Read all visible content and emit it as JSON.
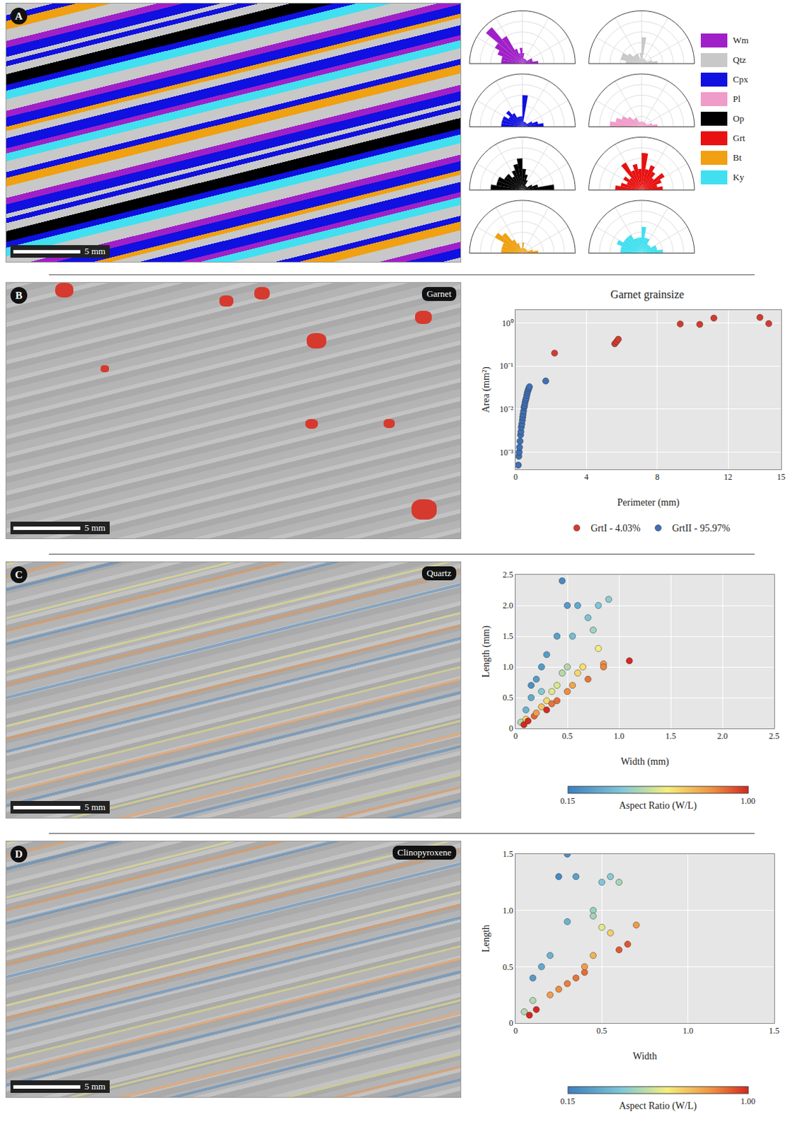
{
  "panels": [
    {
      "letter": "A",
      "scale_bar": "5 mm"
    },
    {
      "letter": "B",
      "map_label": "Garnet",
      "scale_bar": "5 mm"
    },
    {
      "letter": "C",
      "map_label": "Quartz",
      "scale_bar": "5 mm"
    },
    {
      "letter": "D",
      "map_label": "Clinopyroxene",
      "scale_bar": "5 mm"
    }
  ],
  "chart_data": [
    {
      "type": "rose",
      "panel": "A",
      "name": "Wm",
      "color": "#a020c8",
      "x": [
        5,
        15,
        25,
        35,
        45,
        55,
        65,
        75,
        85,
        95,
        105,
        115,
        125,
        135,
        145,
        155,
        165,
        175
      ],
      "values": [
        3,
        2,
        2,
        1,
        1,
        1,
        1,
        1,
        2,
        3,
        2,
        3,
        6,
        9,
        6,
        5,
        4,
        4
      ],
      "rlim": [
        0,
        10
      ],
      "tick_labels": false
    },
    {
      "type": "rose",
      "panel": "A",
      "name": "Qtz",
      "color": "#c8c8c8",
      "x": [
        5,
        15,
        25,
        35,
        45,
        55,
        65,
        75,
        85,
        95,
        105,
        115,
        125,
        135,
        145,
        155,
        165,
        175
      ],
      "values": [
        3,
        2,
        1,
        1,
        1,
        1,
        1,
        1,
        5,
        2,
        1,
        2,
        2,
        2,
        3,
        4,
        4,
        3
      ],
      "rlim": [
        0,
        10
      ],
      "tick_labels": false
    },
    {
      "type": "rose",
      "panel": "A",
      "name": "Cpx",
      "color": "#1010e0",
      "x": [
        5,
        15,
        25,
        35,
        45,
        55,
        65,
        75,
        85,
        95,
        105,
        115,
        125,
        135,
        145,
        155,
        165,
        175
      ],
      "values": [
        4,
        3,
        2,
        1,
        1,
        1,
        1,
        1,
        6,
        2,
        2,
        2,
        3,
        4,
        3,
        4,
        4,
        4
      ],
      "rlim": [
        0,
        10
      ],
      "tick_labels": false
    },
    {
      "type": "rose",
      "panel": "A",
      "name": "Pl",
      "color": "#f09cc8",
      "x": [
        5,
        15,
        25,
        35,
        45,
        55,
        65,
        75,
        85,
        95,
        105,
        115,
        125,
        135,
        145,
        155,
        165,
        175
      ],
      "values": [
        3,
        2,
        1,
        1,
        1,
        1,
        1,
        1,
        1,
        1,
        1,
        1,
        2,
        2,
        3,
        4,
        5,
        6
      ],
      "rlim": [
        0,
        10
      ],
      "tick_labels": false
    },
    {
      "type": "rose",
      "panel": "A",
      "name": "Op",
      "color": "#000000",
      "x": [
        5,
        15,
        25,
        35,
        45,
        55,
        65,
        75,
        85,
        95,
        105,
        115,
        125,
        135,
        145,
        155,
        165,
        175
      ],
      "values": [
        6,
        3,
        2,
        1,
        1,
        1,
        2,
        3,
        4,
        6,
        5,
        4,
        3,
        4,
        4,
        5,
        5,
        6
      ],
      "rlim": [
        0,
        10
      ],
      "tick_labels": false
    },
    {
      "type": "rose",
      "panel": "A",
      "name": "Grt",
      "color": "#e81010",
      "x": [
        5,
        15,
        25,
        35,
        45,
        55,
        65,
        75,
        85,
        95,
        105,
        115,
        125,
        135,
        145,
        155,
        165,
        175
      ],
      "values": [
        4,
        3,
        4,
        5,
        3,
        4,
        5,
        4,
        7,
        4,
        5,
        4,
        6,
        3,
        4,
        3,
        4,
        5
      ],
      "rlim": [
        0,
        10
      ],
      "tick_labels": false
    },
    {
      "type": "rose",
      "panel": "A",
      "name": "Bt",
      "color": "#f0a010",
      "x": [
        5,
        15,
        25,
        35,
        45,
        55,
        65,
        75,
        85,
        95,
        105,
        115,
        125,
        135,
        145,
        155,
        165,
        175
      ],
      "values": [
        3,
        2,
        1,
        1,
        1,
        1,
        1,
        1,
        2,
        1,
        1,
        2,
        3,
        5,
        6,
        4,
        4,
        4
      ],
      "rlim": [
        0,
        10
      ],
      "tick_labels": false
    },
    {
      "type": "rose",
      "panel": "A",
      "name": "Ky",
      "color": "#40e0f0",
      "x": [
        5,
        15,
        25,
        35,
        45,
        55,
        65,
        75,
        85,
        95,
        105,
        115,
        125,
        135,
        145,
        155,
        165,
        175
      ],
      "values": [
        4,
        3,
        3,
        2,
        2,
        2,
        3,
        3,
        5,
        3,
        3,
        3,
        4,
        4,
        4,
        5,
        4,
        4
      ],
      "rlim": [
        0,
        10
      ],
      "tick_labels": false
    },
    {
      "type": "scatter",
      "panel": "B",
      "title": "Garnet grainsize",
      "x_label": "Perimeter (mm)",
      "y_label": "Area (mm²)",
      "series": [
        {
          "name": "GrtI - 4.03%",
          "color": "#d63a2e",
          "x": [
            2.2,
            5.6,
            5.7,
            5.8,
            9.3,
            10.4,
            11.2,
            13.8,
            14.3
          ],
          "values": [
            0.2,
            0.33,
            0.37,
            0.42,
            0.95,
            0.93,
            1.3,
            1.35,
            0.97
          ]
        },
        {
          "name": "GrtII - 95.97%",
          "color": "#3f6fb5",
          "x": [
            0.15,
            0.18,
            0.2,
            0.22,
            0.25,
            0.28,
            0.3,
            0.32,
            0.35,
            0.38,
            0.4,
            0.42,
            0.45,
            0.48,
            0.5,
            0.53,
            0.56,
            0.6,
            0.63,
            0.66,
            0.7,
            0.74,
            0.78,
            1.7
          ],
          "values": [
            0.0005,
            0.0008,
            0.001,
            0.0013,
            0.0018,
            0.0025,
            0.003,
            0.0038,
            0.0045,
            0.0055,
            0.0065,
            0.0075,
            0.009,
            0.011,
            0.012,
            0.014,
            0.016,
            0.018,
            0.021,
            0.024,
            0.027,
            0.03,
            0.033,
            0.045
          ]
        }
      ],
      "xlim": [
        0,
        15
      ],
      "xticks": [
        0,
        4,
        8,
        12,
        15
      ],
      "ylim": [
        0.0004,
        2
      ],
      "yticks": [
        {
          "value": 1,
          "label": "10⁰"
        },
        {
          "value": 0.1,
          "label": "10⁻¹"
        },
        {
          "value": 0.01,
          "label": "10⁻²"
        },
        {
          "value": 0.001,
          "label": "10⁻³"
        }
      ],
      "log": "y",
      "grid": true,
      "legend": "bottom"
    },
    {
      "type": "scatter",
      "panel": "C",
      "x_label": "Width (mm)",
      "y_label": "Length (mm)",
      "x": [
        0.05,
        0.08,
        0.1,
        0.1,
        0.12,
        0.15,
        0.15,
        0.18,
        0.2,
        0.2,
        0.25,
        0.25,
        0.25,
        0.3,
        0.3,
        0.3,
        0.35,
        0.35,
        0.4,
        0.4,
        0.4,
        0.45,
        0.45,
        0.5,
        0.5,
        0.5,
        0.55,
        0.55,
        0.6,
        0.6,
        0.65,
        0.7,
        0.7,
        0.75,
        0.8,
        0.8,
        0.85,
        0.85,
        0.9,
        1.1
      ],
      "values": [
        0.1,
        0.06,
        0.15,
        0.3,
        0.12,
        0.5,
        0.7,
        0.2,
        0.25,
        0.8,
        1.0,
        0.35,
        0.6,
        0.45,
        1.2,
        0.3,
        0.6,
        0.4,
        1.5,
        0.45,
        0.7,
        2.4,
        0.9,
        2.0,
        0.6,
        1.0,
        0.7,
        1.5,
        2.0,
        0.9,
        1.0,
        1.8,
        0.8,
        1.6,
        2.0,
        1.3,
        1.05,
        1.0,
        2.1,
        1.1
      ],
      "xlim": [
        0,
        2.5
      ],
      "xticks": [
        0,
        0.5,
        {
          "value": 1,
          "label": "1.0"
        },
        1.5,
        {
          "value": 2,
          "label": "2.0"
        },
        2.5
      ],
      "ylim": [
        0,
        2.5
      ],
      "yticks": [
        0,
        0.5,
        {
          "value": 1,
          "label": "1.0"
        },
        1.5,
        {
          "value": 2,
          "label": "2.0"
        },
        2.5
      ],
      "grid": true,
      "colorbar": {
        "title": "Aspect Ratio (W/L)",
        "range": [
          0.15,
          1
        ],
        "ticks": [
          0.15,
          {
            "value": 1,
            "label": "1.00"
          }
        ]
      }
    },
    {
      "type": "scatter",
      "panel": "D",
      "x_label": "Width",
      "y_label": "Length",
      "x": [
        0.05,
        0.08,
        0.1,
        0.1,
        0.12,
        0.15,
        0.2,
        0.2,
        0.25,
        0.25,
        0.3,
        0.3,
        0.3,
        0.35,
        0.35,
        0.4,
        0.4,
        0.45,
        0.45,
        0.45,
        0.5,
        0.5,
        0.55,
        0.55,
        0.6,
        0.6,
        0.65,
        0.7
      ],
      "values": [
        0.1,
        0.07,
        0.2,
        0.4,
        0.12,
        0.5,
        0.6,
        0.25,
        0.3,
        1.3,
        1.5,
        0.35,
        0.9,
        0.4,
        1.3,
        0.45,
        0.5,
        1.0,
        0.95,
        0.6,
        1.25,
        0.85,
        1.3,
        0.8,
        1.25,
        0.65,
        0.7,
        0.87
      ],
      "xlim": [
        0,
        1.5
      ],
      "xticks": [
        0,
        0.5,
        {
          "value": 1,
          "label": "1.0"
        },
        1.5
      ],
      "ylim": [
        0,
        1.5
      ],
      "yticks": [
        0,
        0.5,
        {
          "value": 1,
          "label": "1.0"
        },
        1.5
      ],
      "grid": true,
      "colorbar": {
        "title": "Aspect Ratio (W/L)",
        "range": [
          0.15,
          1
        ],
        "ticks": [
          0.15,
          {
            "value": 1,
            "label": "1.00"
          }
        ]
      }
    }
  ]
}
